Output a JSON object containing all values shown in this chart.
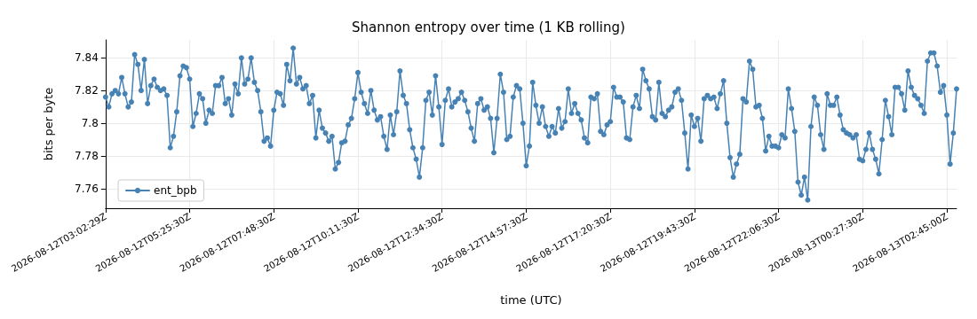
{
  "chart_data": {
    "type": "line",
    "title": "Shannon entropy over time (1 KB rolling)",
    "xlabel": "time (UTC)",
    "ylabel": "bits per byte",
    "categories": [
      "2026-08-12T03:02:29Z",
      null,
      null,
      null,
      null,
      null,
      null,
      null,
      null,
      null,
      null,
      null,
      null,
      null,
      null,
      null,
      null,
      null,
      null,
      null,
      null,
      null,
      null,
      null,
      null,
      null,
      "2026-08-12T05:25:30Z",
      null,
      null,
      null,
      null,
      null,
      null,
      null,
      null,
      null,
      null,
      null,
      null,
      null,
      null,
      null,
      null,
      null,
      null,
      null,
      null,
      null,
      null,
      null,
      null,
      null,
      "2026-08-12T07:48:30Z",
      null,
      null,
      null,
      null,
      null,
      null,
      null,
      null,
      null,
      null,
      null,
      null,
      null,
      null,
      null,
      null,
      null,
      null,
      null,
      null,
      null,
      null,
      null,
      null,
      null,
      "2026-08-12T10:11:30Z",
      null,
      null,
      null,
      null,
      null,
      null,
      null,
      null,
      null,
      null,
      null,
      null,
      null,
      null,
      null,
      null,
      null,
      null,
      null,
      null,
      null,
      null,
      null,
      null,
      null,
      "2026-08-12T12:34:30Z",
      null,
      null,
      null,
      null,
      null,
      null,
      null,
      null,
      null,
      null,
      null,
      null,
      null,
      null,
      null,
      null,
      null,
      null,
      null,
      null,
      null,
      null,
      null,
      null,
      null,
      "2026-08-12T14:57:30Z",
      null,
      null,
      null,
      null,
      null,
      null,
      null,
      null,
      null,
      null,
      null,
      null,
      null,
      null,
      null,
      null,
      null,
      null,
      null,
      null,
      null,
      null,
      null,
      null,
      null,
      "2026-08-12T17:20:30Z",
      null,
      null,
      null,
      null,
      null,
      null,
      null,
      null,
      null,
      null,
      null,
      null,
      null,
      null,
      null,
      null,
      null,
      null,
      null,
      null,
      null,
      null,
      null,
      null,
      null,
      "2026-08-12T19:43:30Z",
      null,
      null,
      null,
      null,
      null,
      null,
      null,
      null,
      null,
      null,
      null,
      null,
      null,
      null,
      null,
      null,
      null,
      null,
      null,
      null,
      null,
      null,
      null,
      null,
      null,
      "2026-08-12T22:06:30Z",
      null,
      null,
      null,
      null,
      null,
      null,
      null,
      null,
      null,
      null,
      null,
      null,
      null,
      null,
      null,
      null,
      null,
      null,
      null,
      null,
      null,
      null,
      null,
      null,
      null,
      "2026-08-13T00:27:30Z",
      null,
      null,
      null,
      null,
      null,
      null,
      null,
      null,
      null,
      null,
      null,
      null,
      null,
      null,
      null,
      null,
      null,
      null,
      null,
      null,
      null,
      null,
      null,
      null,
      null,
      "2026-08-13T02:45:00Z",
      null,
      null,
      null
    ],
    "series": [
      {
        "name": "ent_bpb",
        "color": "#4682b4",
        "values": [
          7.816,
          7.81,
          7.818,
          7.82,
          7.818,
          7.828,
          7.818,
          7.81,
          7.813,
          7.842,
          7.836,
          7.82,
          7.839,
          7.812,
          7.823,
          7.827,
          7.822,
          7.82,
          7.821,
          7.817,
          7.785,
          7.792,
          7.807,
          7.829,
          7.835,
          7.834,
          7.827,
          7.798,
          7.806,
          7.818,
          7.815,
          7.8,
          7.808,
          7.806,
          7.823,
          7.823,
          7.828,
          7.812,
          7.815,
          7.805,
          7.824,
          7.818,
          7.84,
          7.824,
          7.827,
          7.84,
          7.825,
          7.82,
          7.807,
          7.789,
          7.791,
          7.786,
          7.808,
          7.819,
          7.818,
          7.811,
          7.836,
          7.826,
          7.846,
          7.824,
          7.828,
          7.821,
          7.823,
          7.812,
          7.817,
          7.791,
          7.808,
          7.797,
          7.794,
          7.789,
          7.792,
          7.772,
          7.776,
          7.788,
          7.789,
          7.799,
          7.803,
          7.815,
          7.831,
          7.819,
          7.812,
          7.806,
          7.82,
          7.808,
          7.802,
          7.804,
          7.792,
          7.784,
          7.805,
          7.793,
          7.807,
          7.832,
          7.817,
          7.812,
          7.796,
          7.785,
          7.778,
          7.767,
          7.785,
          7.814,
          7.819,
          7.805,
          7.829,
          7.81,
          7.787,
          7.814,
          7.821,
          7.81,
          7.813,
          7.815,
          7.819,
          7.814,
          7.807,
          7.797,
          7.789,
          7.812,
          7.815,
          7.808,
          7.81,
          7.803,
          7.782,
          7.803,
          7.83,
          7.819,
          7.79,
          7.792,
          7.816,
          7.823,
          7.821,
          7.8,
          7.774,
          7.786,
          7.825,
          7.811,
          7.8,
          7.81,
          7.798,
          7.792,
          7.798,
          7.794,
          7.809,
          7.797,
          7.801,
          7.821,
          7.806,
          7.812,
          7.806,
          7.802,
          7.791,
          7.788,
          7.816,
          7.815,
          7.818,
          7.795,
          7.793,
          7.799,
          7.801,
          7.822,
          7.816,
          7.816,
          7.813,
          7.791,
          7.79,
          7.81,
          7.817,
          7.809,
          7.833,
          7.826,
          7.821,
          7.804,
          7.802,
          7.825,
          7.806,
          7.804,
          7.808,
          7.81,
          7.819,
          7.821,
          7.814,
          7.794,
          7.772,
          7.805,
          7.798,
          7.803,
          7.789,
          7.815,
          7.817,
          7.815,
          7.816,
          7.809,
          7.818,
          7.826,
          7.8,
          7.779,
          7.767,
          7.775,
          7.781,
          7.815,
          7.813,
          7.838,
          7.833,
          7.81,
          7.811,
          7.803,
          7.783,
          7.792,
          7.786,
          7.786,
          7.785,
          7.793,
          7.791,
          7.821,
          7.809,
          7.795,
          7.764,
          7.756,
          7.767,
          7.753,
          7.798,
          7.816,
          7.811,
          7.793,
          7.784,
          7.818,
          7.811,
          7.811,
          7.816,
          7.805,
          7.796,
          7.794,
          7.793,
          7.791,
          7.793,
          7.778,
          7.777,
          7.784,
          7.794,
          7.784,
          7.778,
          7.769,
          7.79,
          7.814,
          7.804,
          7.793,
          7.822,
          7.822,
          7.818,
          7.808,
          7.832,
          7.822,
          7.817,
          7.815,
          7.811,
          7.806,
          7.838,
          7.843,
          7.843,
          7.835,
          7.819,
          7.823,
          7.805,
          7.775,
          7.794,
          7.821
        ]
      }
    ],
    "ylim": [
      7.748,
      7.851
    ],
    "yticks": [
      7.76,
      7.78,
      7.8,
      7.82,
      7.84
    ],
    "grid": true,
    "legend": "bottom left",
    "marker": "circle",
    "line_style": "solid"
  }
}
